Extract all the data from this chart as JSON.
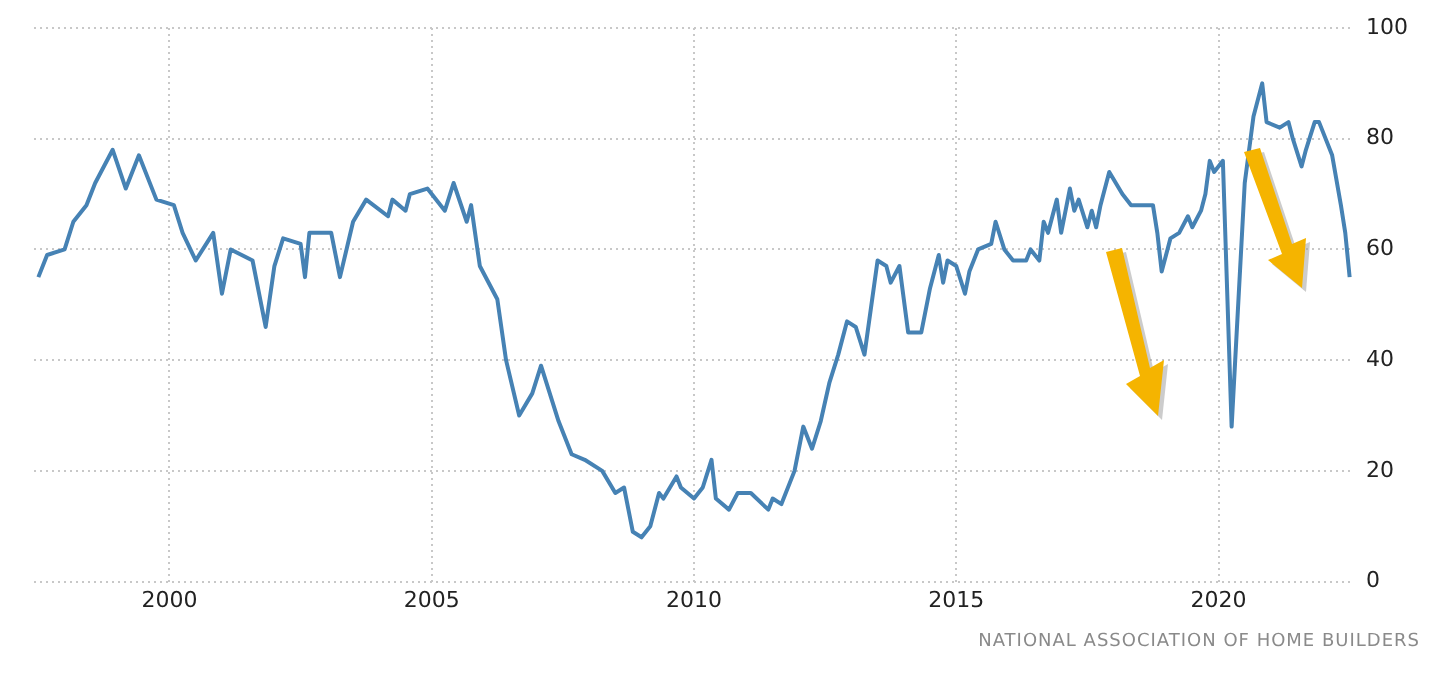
{
  "chart_data": {
    "type": "line",
    "color": "#4682b4",
    "grid": true,
    "legend": false,
    "marker": "none",
    "line_style": "solid",
    "annotations": [
      "NATIONAL ASSOCIATION OF HOME BUILDERS"
    ],
    "xlim": [
      "1997-06",
      "2022-08"
    ],
    "xticks": [
      {
        "value": "2000",
        "label": "2000"
      },
      {
        "value": "2005",
        "label": "2005"
      },
      {
        "value": "2010",
        "label": "2010"
      },
      {
        "value": "2015",
        "label": "2015"
      },
      {
        "value": "2020",
        "label": "2020"
      }
    ],
    "ylim": [
      0,
      100
    ],
    "yticks": [
      0,
      20,
      40,
      60,
      80,
      100
    ],
    "x": [
      "1997-07",
      "1997-09",
      "1998-01",
      "1998-03",
      "1998-06",
      "1998-08",
      "1998-12",
      "1999-03",
      "1999-06",
      "1999-10",
      "2000-02",
      "2000-04",
      "2000-07",
      "2000-11",
      "2001-01",
      "2001-03",
      "2001-08",
      "2001-11",
      "2002-01",
      "2002-03",
      "2002-07",
      "2002-08",
      "2002-09",
      "2003-02",
      "2003-04",
      "2003-07",
      "2003-10",
      "2004-03",
      "2004-04",
      "2004-07",
      "2004-08",
      "2004-12",
      "2005-04",
      "2005-06",
      "2005-09",
      "2005-10",
      "2005-12",
      "2006-04",
      "2006-06",
      "2006-09",
      "2006-12",
      "2007-02",
      "2007-06",
      "2007-09",
      "2007-12",
      "2008-04",
      "2008-07",
      "2008-09",
      "2008-11",
      "2009-01",
      "2009-03",
      "2009-05",
      "2009-06",
      "2009-09",
      "2009-10",
      "2010-01",
      "2010-03",
      "2010-05",
      "2010-06",
      "2010-09",
      "2010-11",
      "2011-02",
      "2011-06",
      "2011-07",
      "2011-09",
      "2011-12",
      "2012-02",
      "2012-04",
      "2012-06",
      "2012-08",
      "2012-10",
      "2012-12",
      "2013-02",
      "2013-04",
      "2013-07",
      "2013-09",
      "2013-10",
      "2013-12",
      "2014-02",
      "2014-05",
      "2014-07",
      "2014-09",
      "2014-10",
      "2014-11",
      "2015-01",
      "2015-03",
      "2015-04",
      "2015-06",
      "2015-09",
      "2015-10",
      "2015-12",
      "2016-02",
      "2016-05",
      "2016-06",
      "2016-08",
      "2016-09",
      "2016-10",
      "2016-12",
      "2017-01",
      "2017-03",
      "2017-04",
      "2017-05",
      "2017-07",
      "2017-08",
      "2017-09",
      "2017-10",
      "2017-12",
      "2018-03",
      "2018-05",
      "2018-07",
      "2018-10",
      "2018-11",
      "2018-12",
      "2019-02",
      "2019-04",
      "2019-06",
      "2019-07",
      "2019-09",
      "2019-10",
      "2019-11",
      "2019-12",
      "2020-02",
      "2020-04",
      "2020-07",
      "2020-09",
      "2020-11",
      "2020-12",
      "2021-03",
      "2021-05",
      "2021-06",
      "2021-08",
      "2021-09",
      "2021-11",
      "2021-12",
      "2022-03",
      "2022-05",
      "2022-06",
      "2022-07"
    ],
    "values": [
      55,
      59,
      60,
      65,
      68,
      72,
      78,
      71,
      77,
      69,
      68,
      63,
      58,
      63,
      52,
      60,
      58,
      46,
      57,
      62,
      61,
      55,
      63,
      63,
      55,
      65,
      69,
      66,
      69,
      67,
      70,
      71,
      67,
      72,
      65,
      68,
      57,
      51,
      40,
      30,
      34,
      39,
      29,
      23,
      22,
      20,
      16,
      17,
      9,
      8,
      10,
      16,
      15,
      19,
      17,
      15,
      17,
      22,
      15,
      13,
      16,
      16,
      13,
      15,
      14,
      20,
      28,
      24,
      29,
      36,
      41,
      47,
      46,
      41,
      58,
      57,
      54,
      57,
      45,
      45,
      53,
      59,
      54,
      58,
      57,
      52,
      56,
      60,
      61,
      65,
      60,
      58,
      58,
      60,
      58,
      65,
      63,
      69,
      63,
      71,
      67,
      69,
      64,
      67,
      64,
      68,
      74,
      70,
      68,
      68,
      68,
      63,
      56,
      62,
      63,
      66,
      64,
      67,
      70,
      76,
      74,
      76,
      28,
      72,
      84,
      90,
      83,
      82,
      83,
      80,
      75,
      78,
      83,
      83,
      77,
      68,
      63,
      55
    ]
  }
}
